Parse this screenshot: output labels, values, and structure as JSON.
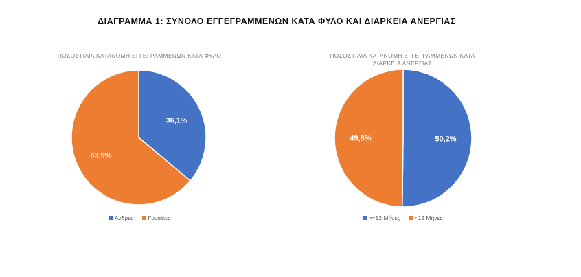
{
  "title": "ΔΙΑΓΡΑΜΜΑ 1: ΣΥΝΟΛΟ ΕΓΓΕΓΡΑΜΜΕΝΩΝ ΚΑΤΑ ΦΥΛΟ ΚΑΙ ΔΙΑΡΚΕΙΑ ΑΝΕΡΓΙΑΣ",
  "colors": {
    "blue": "#4472C4",
    "orange": "#ED7D31"
  },
  "chart_data": [
    {
      "type": "pie",
      "title": "ΠΟΣΟΣΤΙΑΙΑ ΚΑΤΑΝΟΜΗ ΕΓΓΕΓΡΑΜΜΕΝΩΝ ΚΑΤΑ ΦΥΛΟ",
      "categories": [
        "Άνδρες",
        "Γυναίκες"
      ],
      "values": [
        36.1,
        63.9
      ],
      "data_labels": [
        "36,1%",
        "63,9%"
      ],
      "colors": [
        "#4472C4",
        "#ED7D31"
      ],
      "legend_position": "bottom"
    },
    {
      "type": "pie",
      "title": "ΠΟΣΟΣΤΙΑΙΑ ΚΑΤΑΝΟΜΗ ΕΓΓΕΓΡΑΜΜΕΝΩΝ ΚΑΤΑ ΔΙΑΡΚΕΙΑ ΑΝΕΡΓΙΑΣ",
      "categories": [
        ">=12 Μήνες",
        "<12 Μήνες"
      ],
      "values": [
        50.2,
        49.8
      ],
      "data_labels": [
        "50,2%",
        "49,8%"
      ],
      "colors": [
        "#4472C4",
        "#ED7D31"
      ],
      "legend_position": "bottom"
    }
  ]
}
